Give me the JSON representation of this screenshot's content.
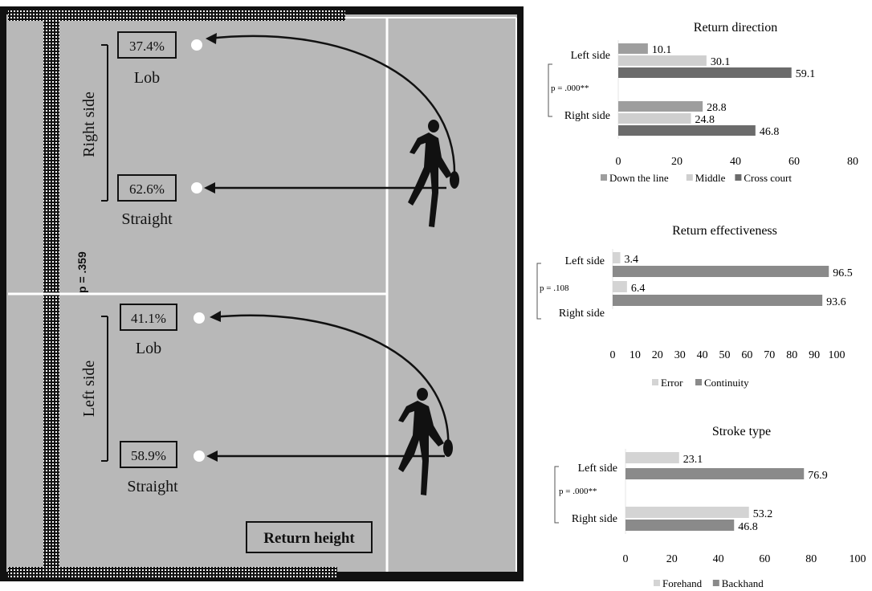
{
  "court": {
    "p_value_vertical": "p = .359",
    "return_height_label": "Return height",
    "right_side": {
      "label": "Right side",
      "lob": {
        "pct": "37.4%",
        "label": "Lob"
      },
      "straight": {
        "pct": "62.6%",
        "label": "Straight"
      }
    },
    "left_side": {
      "label": "Left side",
      "lob": {
        "pct": "41.1%",
        "label": "Lob"
      },
      "straight": {
        "pct": "58.9%",
        "label": "Straight"
      }
    },
    "colors": {
      "floor": "#b8b8b8",
      "frame": "#111111",
      "lines": "#ffffff"
    }
  },
  "chart_data": [
    {
      "type": "bar",
      "orientation": "horizontal",
      "title": "Return direction",
      "categories": [
        "Left side",
        "Right side"
      ],
      "p_value": "p = .000**",
      "xlim": [
        0,
        80
      ],
      "xticks": [
        "0",
        "20",
        "40",
        "60",
        "80"
      ],
      "series": [
        {
          "name": "Down the line",
          "values": [
            10.1,
            28.8
          ],
          "labels": [
            "10.1",
            "28.8"
          ],
          "color": "#9e9e9e"
        },
        {
          "name": "Middle",
          "values": [
            30.1,
            24.8
          ],
          "labels": [
            "30.1",
            "24.8"
          ],
          "color": "#cfcfcf"
        },
        {
          "name": "Cross court",
          "values": [
            59.1,
            46.8
          ],
          "labels": [
            "59.1",
            "46.8"
          ],
          "color": "#6b6b6b"
        }
      ],
      "legend_position": "bottom"
    },
    {
      "type": "bar",
      "orientation": "horizontal",
      "title": "Return effectiveness",
      "categories": [
        "Left side",
        "Right side"
      ],
      "p_value": "p = .108",
      "xlim": [
        0,
        100
      ],
      "xticks": [
        "0",
        "10",
        "20",
        "30",
        "40",
        "50",
        "60",
        "70",
        "80",
        "90",
        "100"
      ],
      "series": [
        {
          "name": "Error",
          "values": [
            3.4,
            6.4
          ],
          "labels": [
            "3.4",
            "6.4"
          ],
          "color": "#d4d4d4"
        },
        {
          "name": "Continuity",
          "values": [
            96.5,
            93.6
          ],
          "labels": [
            "96.5",
            "93.6"
          ],
          "color": "#8a8a8a"
        }
      ],
      "legend_position": "bottom"
    },
    {
      "type": "bar",
      "orientation": "horizontal",
      "title": "Stroke type",
      "categories": [
        "Left side",
        "Right side"
      ],
      "p_value": "p = .000**",
      "xlim": [
        0,
        100
      ],
      "xticks": [
        "0",
        "20",
        "40",
        "60",
        "80",
        "100"
      ],
      "series": [
        {
          "name": "Forehand",
          "values": [
            23.1,
            53.2
          ],
          "labels": [
            "23.1",
            "53.2"
          ],
          "color": "#d4d4d4"
        },
        {
          "name": "Backhand",
          "values": [
            76.9,
            46.8
          ],
          "labels": [
            "76.9",
            "46.8"
          ],
          "color": "#8a8a8a"
        }
      ],
      "legend_position": "bottom"
    }
  ]
}
